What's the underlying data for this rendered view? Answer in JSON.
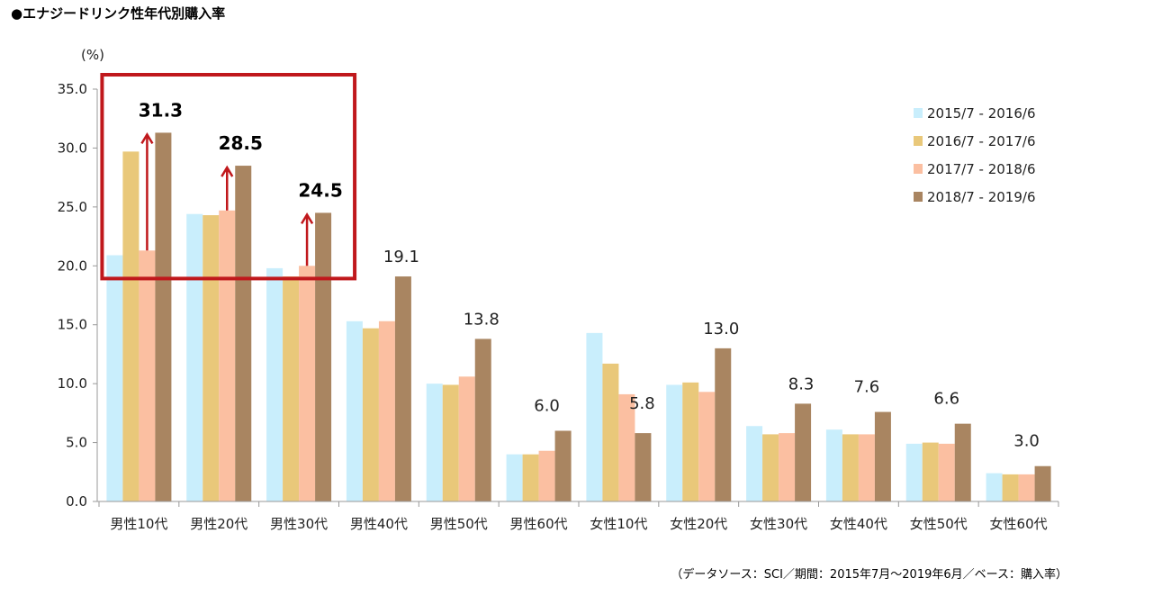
{
  "title": "●エナジードリンク性年代別購入率",
  "source_note": "（データソース：SCI／期間：2015年7月～2019年6月／ベース：購入率）",
  "chart_data": {
    "type": "bar",
    "title": "●エナジードリンク性年代別購入率",
    "ylabel": "(%)",
    "ylim": [
      0,
      35
    ],
    "yticks": [
      "0.0",
      "5.0",
      "10.0",
      "15.0",
      "20.0",
      "25.0",
      "30.0",
      "35.0"
    ],
    "categories": [
      "男性10代",
      "男性20代",
      "男性30代",
      "男性40代",
      "男性50代",
      "男性60代",
      "女性10代",
      "女性20代",
      "女性30代",
      "女性40代",
      "女性50代",
      "女性60代"
    ],
    "series": [
      {
        "name": "2015/7 - 2016/6",
        "color": "#c9eefc",
        "values": [
          20.9,
          24.4,
          19.8,
          15.3,
          10.0,
          4.0,
          14.3,
          9.9,
          6.4,
          6.1,
          4.9,
          2.4
        ]
      },
      {
        "name": "2016/7 - 2017/6",
        "color": "#e9c87a",
        "values": [
          29.7,
          24.3,
          19.1,
          14.7,
          9.9,
          4.0,
          11.7,
          10.1,
          5.7,
          5.7,
          5.0,
          2.3
        ]
      },
      {
        "name": "2017/7 - 2018/6",
        "color": "#fbbfa1",
        "values": [
          21.3,
          24.7,
          20.0,
          15.3,
          10.6,
          4.3,
          9.1,
          9.3,
          5.8,
          5.7,
          4.9,
          2.3
        ]
      },
      {
        "name": "2018/7 - 2019/6",
        "color": "#a98561",
        "values": [
          31.3,
          28.5,
          24.5,
          19.1,
          13.8,
          6.0,
          5.8,
          13.0,
          8.3,
          7.6,
          6.6,
          3.0
        ]
      }
    ],
    "data_labels": [
      "31.3",
      "28.5",
      "24.5",
      "19.1",
      "13.8",
      "6.0",
      "5.8",
      "13.0",
      "8.3",
      "7.6",
      "6.6",
      "3.0"
    ],
    "highlighted_categories": [
      "男性10代",
      "男性20代",
      "男性30代"
    ],
    "highlight_color": "#c0181c",
    "legend_position": "top-right",
    "grid": false
  }
}
